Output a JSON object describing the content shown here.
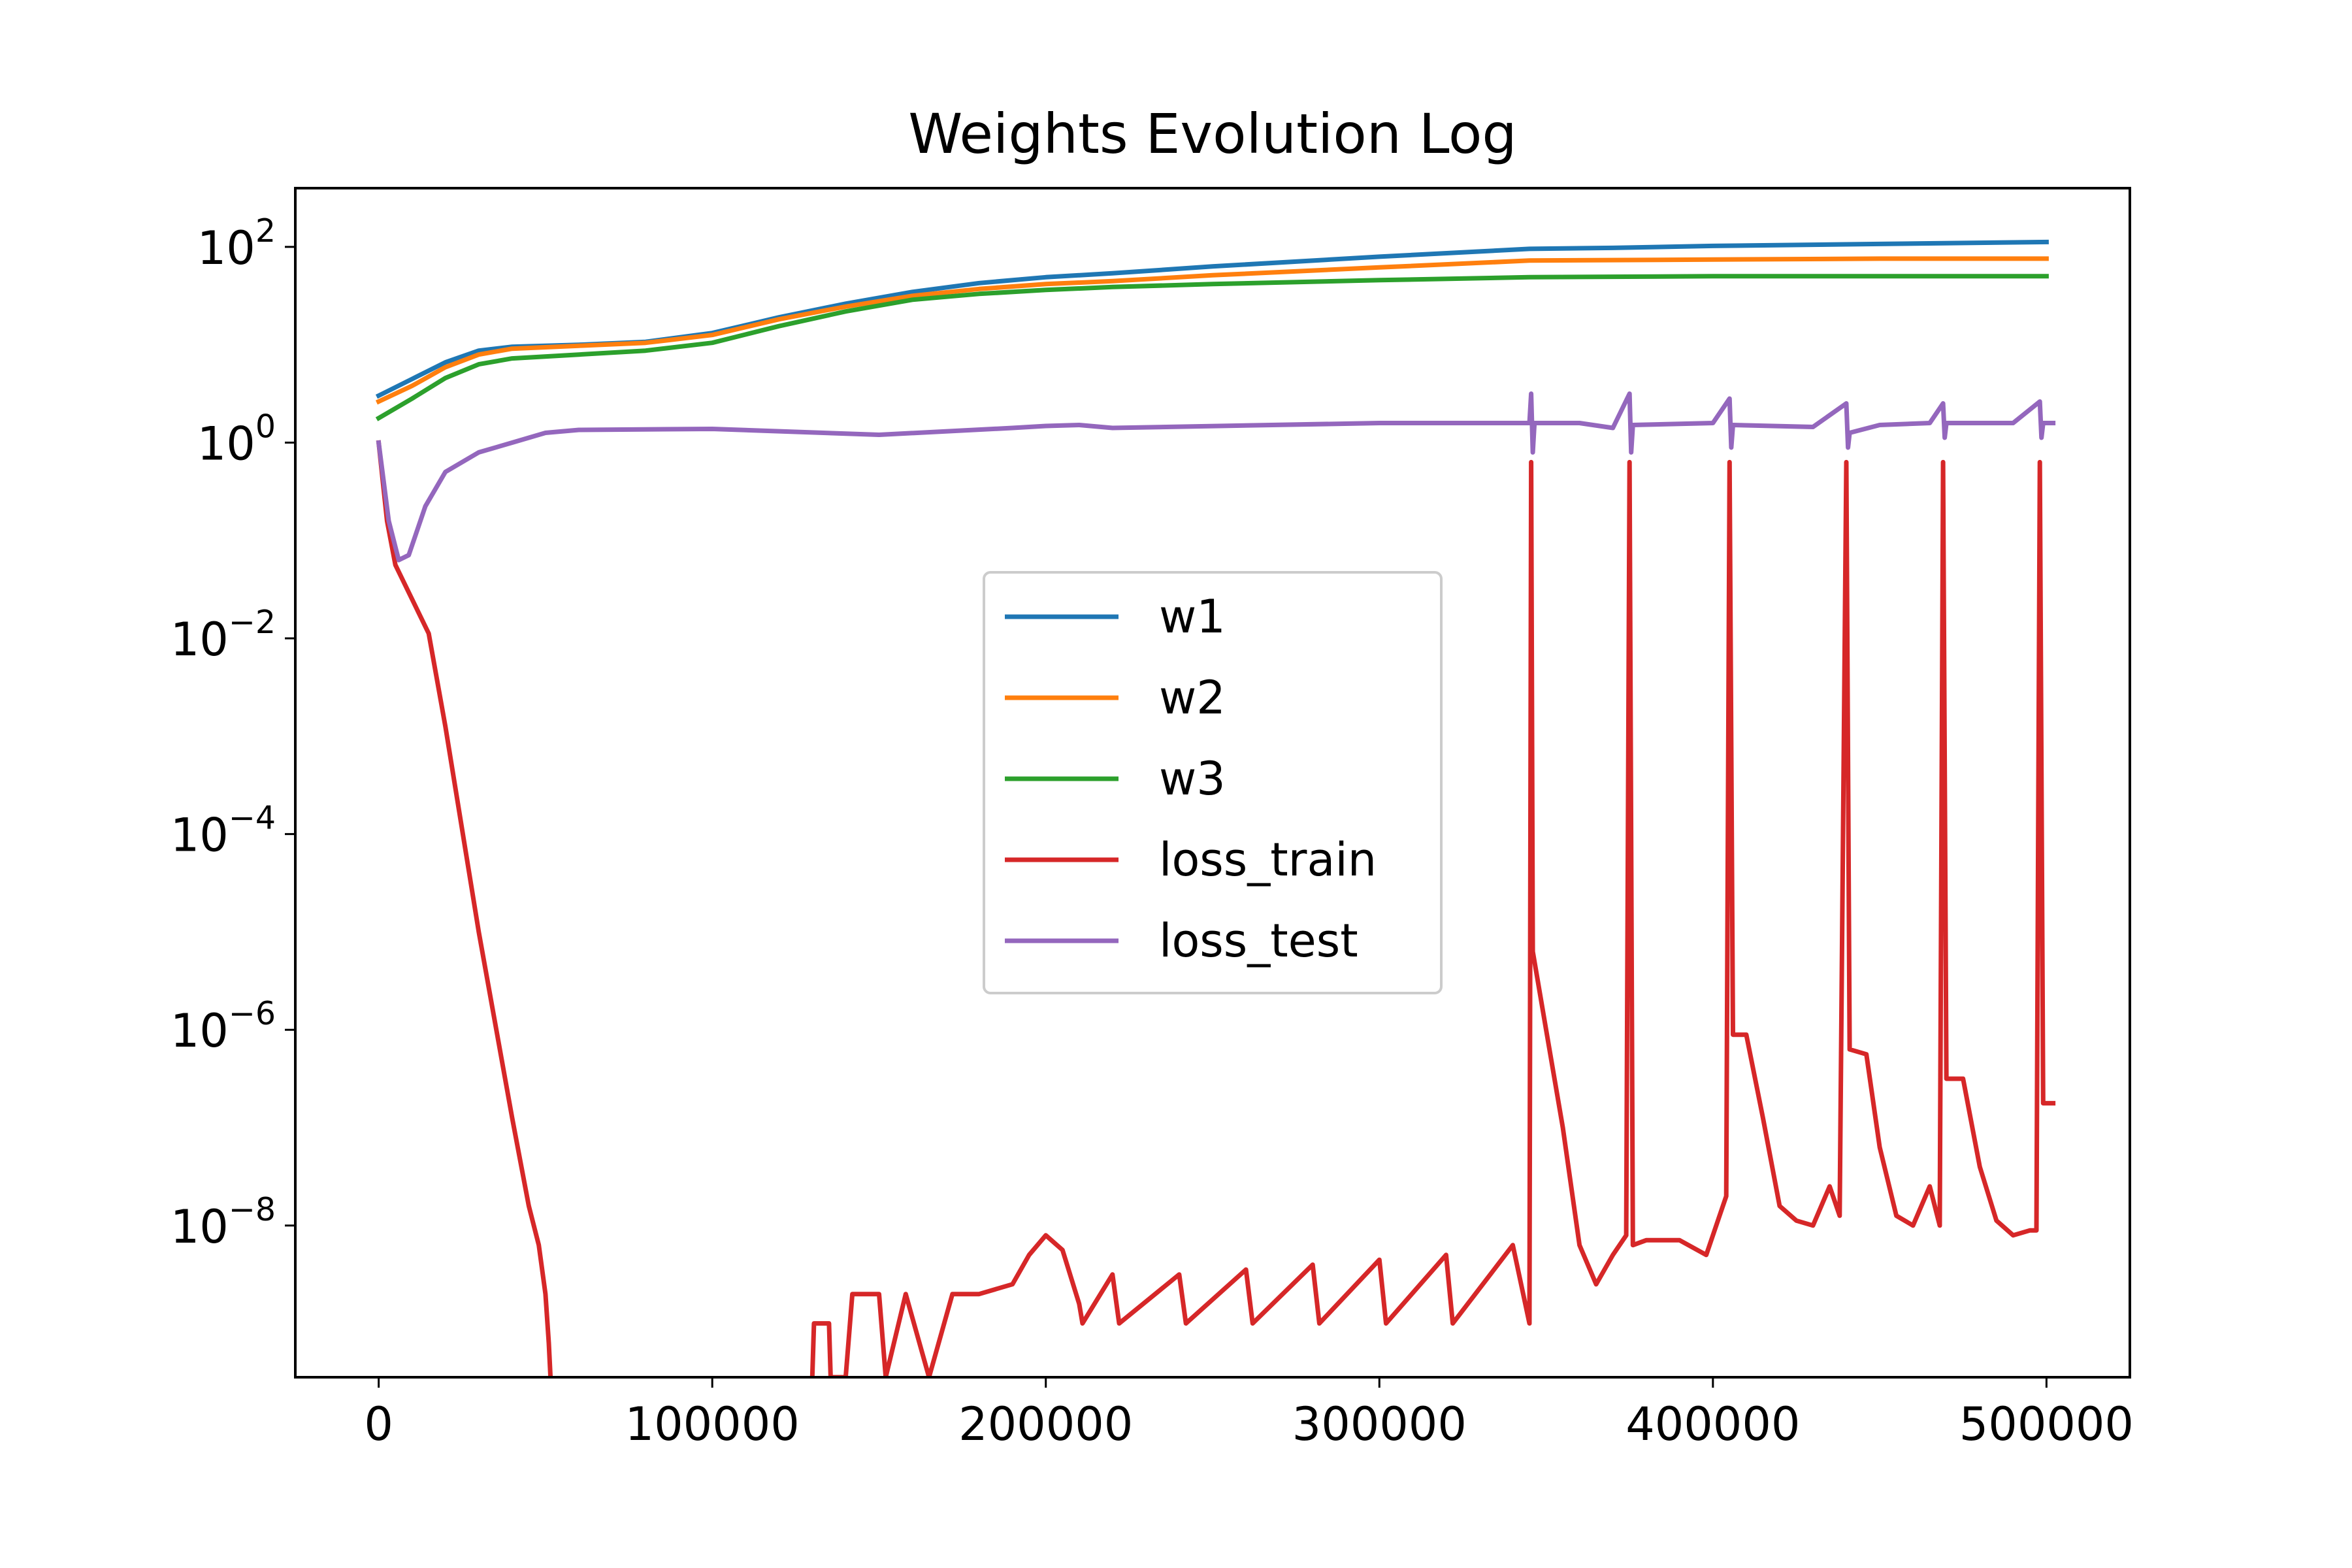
{
  "chart_data": {
    "type": "line",
    "title": "Weights Evolution Log",
    "xlabel": "",
    "ylabel": "",
    "x_scale": "linear",
    "y_scale": "log",
    "xlim": [
      -25000,
      525000
    ],
    "ylim_log10": [
      -9.55,
      2.6
    ],
    "x_ticks": [
      {
        "value": 0,
        "label": "0"
      },
      {
        "value": 100000,
        "label": "100000"
      },
      {
        "value": 200000,
        "label": "200000"
      },
      {
        "value": 300000,
        "label": "300000"
      },
      {
        "value": 400000,
        "label": "400000"
      },
      {
        "value": 500000,
        "label": "500000"
      }
    ],
    "y_ticks": [
      {
        "log10": 2,
        "base": "10",
        "exp": "2"
      },
      {
        "log10": 0,
        "base": "10",
        "exp": "0"
      },
      {
        "log10": -2,
        "base": "10",
        "exp": "−2"
      },
      {
        "log10": -4,
        "base": "10",
        "exp": "−4"
      },
      {
        "log10": -6,
        "base": "10",
        "exp": "−6"
      },
      {
        "log10": -8,
        "base": "10",
        "exp": "−8"
      }
    ],
    "grid": false,
    "legend_position": "center-right",
    "series": [
      {
        "name": "w1",
        "color": "#1f77b4",
        "points": [
          [
            0,
            0.48
          ],
          [
            10000,
            0.65
          ],
          [
            20000,
            0.82
          ],
          [
            30000,
            0.94
          ],
          [
            40000,
            0.98
          ],
          [
            60000,
            1.0
          ],
          [
            80000,
            1.03
          ],
          [
            100000,
            1.12
          ],
          [
            120000,
            1.28
          ],
          [
            140000,
            1.42
          ],
          [
            160000,
            1.54
          ],
          [
            180000,
            1.63
          ],
          [
            200000,
            1.69
          ],
          [
            220000,
            1.73
          ],
          [
            250000,
            1.8
          ],
          [
            300000,
            1.9
          ],
          [
            345000,
            1.98
          ],
          [
            370000,
            1.99
          ],
          [
            400000,
            2.01
          ],
          [
            450000,
            2.03
          ],
          [
            500000,
            2.05
          ]
        ]
      },
      {
        "name": "w2",
        "color": "#ff7f0e",
        "points": [
          [
            0,
            0.42
          ],
          [
            10000,
            0.58
          ],
          [
            20000,
            0.77
          ],
          [
            30000,
            0.9
          ],
          [
            40000,
            0.96
          ],
          [
            60000,
            0.99
          ],
          [
            80000,
            1.02
          ],
          [
            100000,
            1.1
          ],
          [
            120000,
            1.26
          ],
          [
            140000,
            1.39
          ],
          [
            160000,
            1.5
          ],
          [
            180000,
            1.57
          ],
          [
            200000,
            1.62
          ],
          [
            220000,
            1.65
          ],
          [
            250000,
            1.71
          ],
          [
            300000,
            1.79
          ],
          [
            345000,
            1.86
          ],
          [
            400000,
            1.87
          ],
          [
            450000,
            1.88
          ],
          [
            500000,
            1.88
          ]
        ]
      },
      {
        "name": "w3",
        "color": "#2ca02c",
        "points": [
          [
            0,
            0.25
          ],
          [
            10000,
            0.45
          ],
          [
            20000,
            0.66
          ],
          [
            30000,
            0.8
          ],
          [
            40000,
            0.86
          ],
          [
            60000,
            0.9
          ],
          [
            80000,
            0.94
          ],
          [
            100000,
            1.02
          ],
          [
            120000,
            1.19
          ],
          [
            140000,
            1.34
          ],
          [
            160000,
            1.46
          ],
          [
            180000,
            1.52
          ],
          [
            200000,
            1.56
          ],
          [
            220000,
            1.59
          ],
          [
            250000,
            1.62
          ],
          [
            300000,
            1.66
          ],
          [
            345000,
            1.69
          ],
          [
            400000,
            1.7
          ],
          [
            450000,
            1.7
          ],
          [
            500000,
            1.7
          ]
        ]
      },
      {
        "name": "loss_train",
        "color": "#d62728",
        "points": [
          [
            0,
            0.0
          ],
          [
            2500,
            -0.8
          ],
          [
            5000,
            -1.25
          ],
          [
            10000,
            -1.6
          ],
          [
            15000,
            -1.95
          ],
          [
            20000,
            -2.9
          ],
          [
            30000,
            -5.0
          ],
          [
            40000,
            -6.9
          ],
          [
            45000,
            -7.8
          ],
          [
            48000,
            -8.2
          ],
          [
            50000,
            -8.7
          ],
          [
            51000,
            -9.2
          ],
          [
            51500,
            -9.55
          ],
          null,
          [
            130000,
            -9.55
          ],
          [
            130500,
            -9.0
          ],
          [
            135000,
            -9.0
          ],
          [
            135500,
            -9.55
          ],
          [
            140000,
            -9.55
          ],
          [
            142000,
            -8.7
          ],
          [
            150000,
            -8.7
          ],
          [
            152000,
            -9.55
          ],
          [
            158000,
            -8.7
          ],
          [
            165000,
            -9.55
          ],
          [
            172000,
            -8.7
          ],
          [
            180000,
            -8.7
          ],
          [
            185000,
            -8.65
          ],
          [
            190000,
            -8.6
          ],
          [
            195000,
            -8.3
          ],
          [
            200000,
            -8.1
          ],
          [
            205000,
            -8.25
          ],
          [
            210000,
            -8.8
          ],
          [
            211000,
            -9.0
          ],
          [
            220000,
            -8.5
          ],
          [
            222000,
            -9.0
          ],
          [
            240000,
            -8.5
          ],
          [
            242000,
            -9.0
          ],
          [
            260000,
            -8.45
          ],
          [
            262000,
            -9.0
          ],
          [
            280000,
            -8.4
          ],
          [
            282000,
            -9.0
          ],
          [
            300000,
            -8.35
          ],
          [
            302000,
            -9.0
          ],
          [
            320000,
            -8.3
          ],
          [
            322000,
            -9.0
          ],
          [
            340000,
            -8.2
          ],
          [
            345000,
            -9.0
          ],
          [
            345500,
            -0.2
          ],
          [
            346000,
            -5.2
          ],
          [
            350000,
            -6.0
          ],
          [
            355000,
            -7.0
          ],
          [
            360000,
            -8.2
          ],
          [
            365000,
            -8.6
          ],
          [
            370000,
            -8.3
          ],
          [
            374000,
            -8.1
          ],
          [
            375000,
            -0.2
          ],
          [
            376000,
            -8.2
          ],
          [
            380000,
            -8.15
          ],
          [
            390000,
            -8.15
          ],
          [
            398000,
            -8.3
          ],
          [
            402000,
            -7.9
          ],
          [
            404000,
            -7.7
          ],
          [
            405000,
            -0.2
          ],
          [
            406000,
            -6.05
          ],
          [
            410000,
            -6.05
          ],
          [
            415000,
            -6.9
          ],
          [
            420000,
            -7.8
          ],
          [
            425000,
            -7.95
          ],
          [
            430000,
            -8.0
          ],
          [
            435000,
            -7.6
          ],
          [
            438000,
            -7.9
          ],
          [
            440000,
            -0.2
          ],
          [
            441000,
            -6.2
          ],
          [
            446000,
            -6.25
          ],
          [
            450000,
            -7.2
          ],
          [
            455000,
            -7.9
          ],
          [
            460000,
            -8.0
          ],
          [
            465000,
            -7.6
          ],
          [
            468000,
            -8.0
          ],
          [
            469000,
            -0.2
          ],
          [
            470000,
            -6.5
          ],
          [
            475000,
            -6.5
          ],
          [
            480000,
            -7.4
          ],
          [
            485000,
            -7.95
          ],
          [
            490000,
            -8.1
          ],
          [
            495000,
            -8.05
          ],
          [
            497000,
            -8.05
          ],
          [
            498000,
            -0.2
          ],
          [
            499000,
            -6.75
          ],
          [
            500000,
            -6.75
          ],
          [
            502000,
            -6.75
          ]
        ]
      },
      {
        "name": "loss_test",
        "color": "#9467bd",
        "points": [
          [
            0,
            0.0
          ],
          [
            3000,
            -0.8
          ],
          [
            6000,
            -1.2
          ],
          [
            9000,
            -1.15
          ],
          [
            14000,
            -0.65
          ],
          [
            20000,
            -0.3
          ],
          [
            30000,
            -0.1
          ],
          [
            40000,
            0.0
          ],
          [
            50000,
            0.1
          ],
          [
            60000,
            0.13
          ],
          [
            100000,
            0.14
          ],
          [
            150000,
            0.08
          ],
          [
            190000,
            0.15
          ],
          [
            200000,
            0.17
          ],
          [
            210000,
            0.18
          ],
          [
            220000,
            0.15
          ],
          [
            300000,
            0.2
          ],
          [
            345000,
            0.2
          ],
          [
            345500,
            0.5
          ],
          [
            346000,
            -0.1
          ],
          [
            346500,
            0.2
          ],
          [
            360000,
            0.2
          ],
          [
            370000,
            0.15
          ],
          [
            375000,
            0.5
          ],
          [
            375500,
            -0.1
          ],
          [
            376000,
            0.18
          ],
          [
            400000,
            0.2
          ],
          [
            405000,
            0.45
          ],
          [
            405500,
            -0.05
          ],
          [
            406000,
            0.18
          ],
          [
            430000,
            0.16
          ],
          [
            440000,
            0.4
          ],
          [
            440500,
            -0.05
          ],
          [
            441000,
            0.1
          ],
          [
            450000,
            0.18
          ],
          [
            465000,
            0.2
          ],
          [
            469000,
            0.4
          ],
          [
            469500,
            0.05
          ],
          [
            470000,
            0.2
          ],
          [
            490000,
            0.2
          ],
          [
            498000,
            0.42
          ],
          [
            498500,
            0.05
          ],
          [
            499000,
            0.2
          ],
          [
            502000,
            0.2
          ]
        ]
      }
    ]
  }
}
